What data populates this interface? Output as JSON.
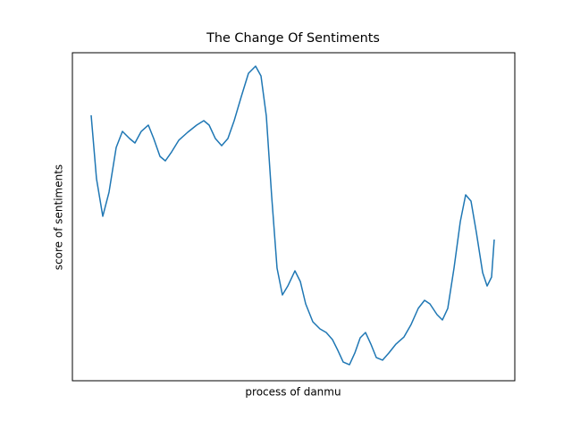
{
  "chart_data": {
    "type": "line",
    "title": "The Change Of Sentiments",
    "x_label": "process of danmu",
    "y_label": "score of sentiments",
    "xlim": [
      0,
      100
    ],
    "ylim": [
      0,
      100
    ],
    "x": [
      4.24,
      5.45,
      6.87,
      8.28,
      9.9,
      11.31,
      12.93,
      14.14,
      15.56,
      17.17,
      18.38,
      19.8,
      21.01,
      22.42,
      24.04,
      26.06,
      28.08,
      29.7,
      30.91,
      32.32,
      33.74,
      35.15,
      36.57,
      38.18,
      39.8,
      41.41,
      42.63,
      43.84,
      45.05,
      46.26,
      47.47,
      48.69,
      50.3,
      51.52,
      52.73,
      54.34,
      55.96,
      57.37,
      58.79,
      60,
      61.21,
      62.63,
      63.84,
      65.05,
      66.26,
      67.47,
      68.69,
      70.1,
      71.52,
      73.13,
      74.95,
      76.57,
      78.18,
      79.6,
      80.81,
      82.42,
      83.64,
      84.85,
      86.26,
      87.68,
      88.89,
      90.1,
      91.31,
      92.73,
      93.74,
      94.75,
      95.35
    ],
    "series": [
      {
        "color": "#1f77b4",
        "values": [
          80.93,
          61.58,
          50.14,
          57.49,
          71.12,
          76.02,
          73.84,
          72.48,
          76.02,
          77.93,
          73.84,
          68.39,
          67.03,
          69.75,
          73.3,
          75.75,
          77.93,
          79.29,
          77.93,
          73.84,
          71.66,
          73.84,
          79.29,
          86.65,
          93.73,
          95.91,
          92.92,
          80.65,
          56.13,
          34.33,
          26.16,
          28.88,
          33.51,
          30.25,
          23.43,
          17.98,
          15.8,
          14.71,
          12.53,
          9.26,
          5.72,
          4.9,
          8.45,
          13.08,
          14.71,
          11.17,
          7.08,
          6.27,
          8.45,
          11.17,
          13.35,
          17.17,
          22.07,
          24.52,
          23.43,
          20.16,
          18.53,
          22.07,
          34.33,
          48.5,
          56.68,
          54.77,
          45.23,
          32.97,
          28.88,
          31.61,
          43.05
        ]
      }
    ]
  }
}
